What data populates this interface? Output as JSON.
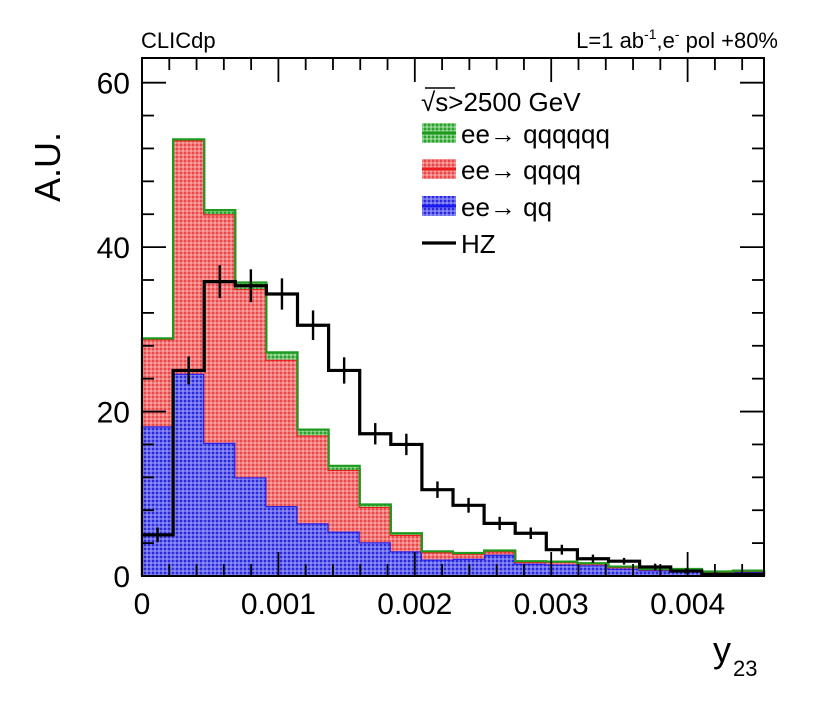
{
  "chart_data": {
    "type": "bar",
    "subtype": "stacked-histogram",
    "experiment_label": "CLICdp",
    "lumi_label": {
      "main": "L=1 ab",
      "sup1": "-1",
      "mid": ",e",
      "sup2": "-",
      "tail": " pol +80%"
    },
    "ylabel": "A.U.",
    "xlabel": {
      "main": "y",
      "sub": "23"
    },
    "xlim": [
      0,
      0.00456
    ],
    "ylim": [
      0,
      63
    ],
    "x_ticks": [
      {
        "value": 0,
        "label": "0"
      },
      {
        "value": 0.001,
        "label": "0.001"
      },
      {
        "value": 0.002,
        "label": "0.002"
      },
      {
        "value": 0.003,
        "label": "0.003"
      },
      {
        "value": 0.004,
        "label": "0.004"
      }
    ],
    "y_ticks": [
      {
        "value": 0,
        "label": "0"
      },
      {
        "value": 20,
        "label": "20"
      },
      {
        "value": 40,
        "label": "40"
      },
      {
        "value": 60,
        "label": "60"
      }
    ],
    "legend_header": {
      "sqrt": "√s",
      "text": ">2500 GeV"
    },
    "bin_edges": [
      0,
      0.000228,
      0.000456,
      0.000684,
      0.000912,
      0.00114,
      0.001368,
      0.001596,
      0.001824,
      0.002052,
      0.00228,
      0.002508,
      0.002736,
      0.002964,
      0.003192,
      0.00342,
      0.003648,
      0.003876,
      0.004104,
      0.004332,
      0.00456
    ],
    "series": [
      {
        "name": "ee→ qq",
        "legend_label": "ee→ qq",
        "role": "stack",
        "fill": "#4a4ae6",
        "stroke": "#1a1af0",
        "values": [
          18.2,
          24.6,
          16.2,
          12.0,
          8.5,
          6.4,
          5.4,
          4.1,
          3.0,
          2.0,
          2.1,
          2.6,
          1.5,
          1.4,
          1.3,
          0.9,
          0.7,
          0.7,
          0.4,
          0.5
        ]
      },
      {
        "name": "ee→ qqqq",
        "legend_label": "ee→ qqqq",
        "role": "stack",
        "fill": "#f06a6a",
        "stroke": "#ee1c1c",
        "values": [
          10.6,
          28.4,
          27.8,
          22.9,
          17.8,
          10.7,
          7.5,
          4.3,
          2.0,
          0.9,
          0.6,
          0.4,
          0.2,
          0.3,
          0.2,
          0.2,
          0.1,
          0.1,
          0.1,
          0.1
        ]
      },
      {
        "name": "ee→ qqqqqq",
        "legend_label": "ee→ qqqqqq",
        "role": "stack",
        "fill": "#5cb85c",
        "stroke": "#1e9a1e",
        "values": [
          0.1,
          0.1,
          0.5,
          0.8,
          0.9,
          0.7,
          0.5,
          0.3,
          0.2,
          0.1,
          0.1,
          0.1,
          0.1,
          0.05,
          0.05,
          0.05,
          0.05,
          0.05,
          0.05,
          0.05
        ]
      },
      {
        "name": "HZ",
        "legend_label": "HZ",
        "role": "overlay",
        "stroke": "#000000",
        "values": [
          5.0,
          25.0,
          35.8,
          35.3,
          34.3,
          30.5,
          25.0,
          17.3,
          16.0,
          10.5,
          8.6,
          6.4,
          5.2,
          3.2,
          2.1,
          1.8,
          1.1,
          0.6,
          0.2,
          0.2
        ],
        "errors": [
          0.9,
          1.7,
          2.0,
          2.0,
          1.9,
          1.8,
          1.6,
          1.3,
          1.3,
          1.0,
          0.9,
          0.8,
          0.7,
          0.6,
          0.5,
          0.4,
          0.4,
          0.3,
          0.2,
          0.2
        ]
      }
    ],
    "legend_order": [
      "ee→ qqqqqq",
      "ee→ qqqq",
      "ee→ qq",
      "HZ"
    ],
    "legend_position": "top-right"
  }
}
